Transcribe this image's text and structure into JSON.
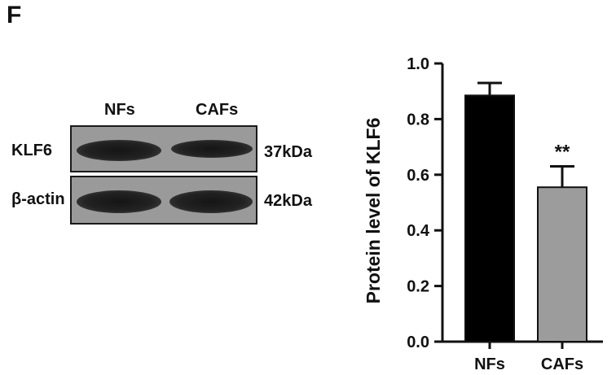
{
  "panel_label": "F",
  "blot": {
    "columns": [
      "NFs",
      "CAFs"
    ],
    "rows": [
      {
        "label": "KLF6",
        "size": "37kDa"
      },
      {
        "label": "β-actin",
        "size": "42kDa"
      }
    ]
  },
  "chart_data": {
    "type": "bar",
    "categories": [
      "NFs",
      "CAFs"
    ],
    "values": [
      0.885,
      0.555
    ],
    "errors": [
      0.045,
      0.075
    ],
    "annotations": [
      "",
      "**"
    ],
    "ylabel": "Protein level of KLF6",
    "ylim": [
      0,
      1.0
    ],
    "yticks": [
      "0.0",
      "0.2",
      "0.4",
      "0.6",
      "0.8",
      "1.0"
    ],
    "bar_colors": [
      "#000000",
      "#9c9c9c"
    ],
    "grid": false
  }
}
